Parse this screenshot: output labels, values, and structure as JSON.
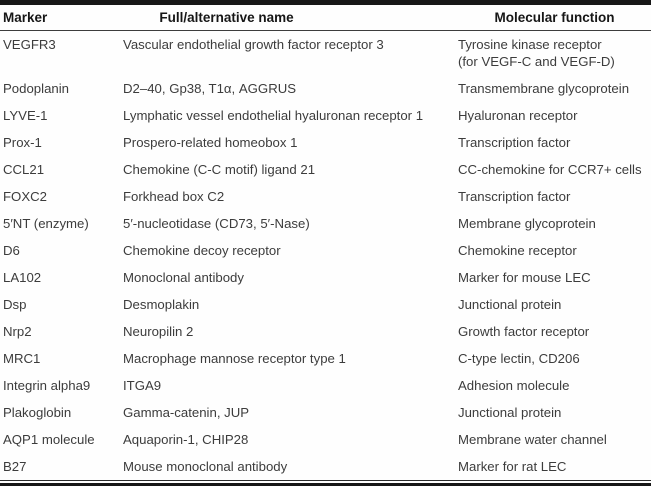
{
  "table": {
    "columns": [
      {
        "label": "Marker"
      },
      {
        "label": "Full/alternative name"
      },
      {
        "label": "Molecular function"
      }
    ],
    "rows": [
      {
        "marker": "VEGFR3",
        "name": "Vascular endothelial growth factor receptor 3",
        "function": "Tyrosine kinase receptor\n(for VEGF-C and VEGF-D)"
      },
      {
        "marker": "Podoplanin",
        "name": "D2–40, Gp38, T1α, AGGRUS",
        "function": "Transmembrane glycoprotein"
      },
      {
        "marker": "LYVE-1",
        "name": "Lymphatic vessel endothelial hyaluronan receptor 1",
        "function": "Hyaluronan receptor"
      },
      {
        "marker": "Prox-1",
        "name": "Prospero-related homeobox 1",
        "function": "Transcription factor"
      },
      {
        "marker": "CCL21",
        "name": "Chemokine (C-C motif) ligand 21",
        "function": "CC-chemokine for CCR7+ cells"
      },
      {
        "marker": "FOXC2",
        "name": "Forkhead box C2",
        "function": "Transcription factor"
      },
      {
        "marker": "5′NT (enzyme)",
        "name": "5′-nucleotidase (CD73, 5′-Nase)",
        "function": "Membrane glycoprotein"
      },
      {
        "marker": "D6",
        "name": "Chemokine decoy receptor",
        "function": "Chemokine receptor"
      },
      {
        "marker": "LA102",
        "name": "Monoclonal antibody",
        "function": "Marker for mouse LEC"
      },
      {
        "marker": "Dsp",
        "name": "Desmoplakin",
        "function": "Junctional protein"
      },
      {
        "marker": "Nrp2",
        "name": "Neuropilin 2",
        "function": "Growth factor receptor"
      },
      {
        "marker": "MRC1",
        "name": "Macrophage mannose receptor type 1",
        "function": "C-type lectin, CD206"
      },
      {
        "marker": "Integrin alpha9",
        "name": "ITGA9",
        "function": "Adhesion molecule"
      },
      {
        "marker": "Plakoglobin",
        "name": "Gamma-catenin, JUP",
        "function": "Junctional protein"
      },
      {
        "marker": "AQP1 molecule",
        "name": "Aquaporin-1, CHIP28",
        "function": "Membrane water channel"
      },
      {
        "marker": "B27",
        "name": "Mouse monoclonal antibody",
        "function": "Marker for rat LEC"
      }
    ]
  }
}
